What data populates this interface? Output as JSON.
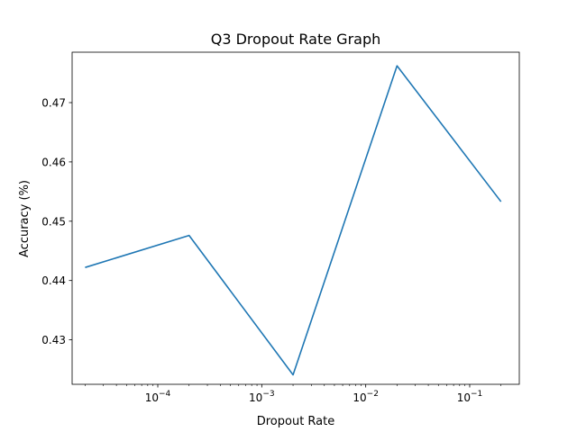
{
  "chart_data": {
    "type": "line",
    "title": "Q3 Dropout Rate Graph",
    "xlabel": "Dropout Rate",
    "ylabel": "Accuracy (%)",
    "x_scale": "log",
    "xlim": [
      1.5e-05,
      0.3
    ],
    "ylim": [
      0.4225,
      0.4785
    ],
    "grid": false,
    "x_ticks": [
      {
        "value": 0.0001,
        "base": "10",
        "exp": "−4"
      },
      {
        "value": 0.001,
        "base": "10",
        "exp": "−3"
      },
      {
        "value": 0.01,
        "base": "10",
        "exp": "−2"
      },
      {
        "value": 0.1,
        "base": "10",
        "exp": "−1"
      }
    ],
    "y_ticks": [
      {
        "value": 0.43,
        "label": "0.43"
      },
      {
        "value": 0.44,
        "label": "0.44"
      },
      {
        "value": 0.45,
        "label": "0.45"
      },
      {
        "value": 0.46,
        "label": "0.46"
      },
      {
        "value": 0.47,
        "label": "0.47"
      }
    ],
    "series": [
      {
        "color": "#1f77b4",
        "x": [
          2e-05,
          0.0002,
          0.002,
          0.02,
          0.2
        ],
        "y": [
          0.4422,
          0.4476,
          0.4241,
          0.4762,
          0.4533
        ]
      }
    ]
  }
}
